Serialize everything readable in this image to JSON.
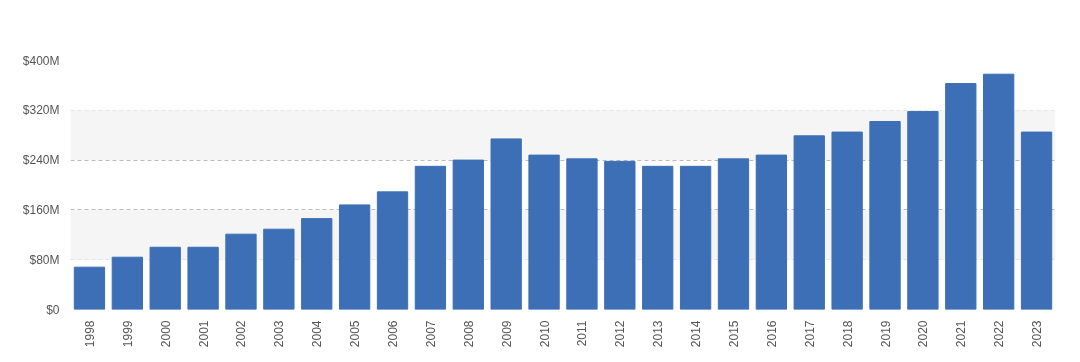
{
  "chart_data": {
    "type": "bar",
    "categories": [
      "1998",
      "1999",
      "2000",
      "2001",
      "2002",
      "2003",
      "2004",
      "2005",
      "2006",
      "2007",
      "2008",
      "2009",
      "2010",
      "2011",
      "2012",
      "2013",
      "2014",
      "2015",
      "2016",
      "2017",
      "2018",
      "2019",
      "2020",
      "2021",
      "2022",
      "2023"
    ],
    "values": [
      68,
      84,
      100,
      100,
      121,
      129,
      146,
      168,
      189,
      230,
      240,
      274,
      248,
      242,
      238,
      230,
      230,
      242,
      248,
      279,
      285,
      302,
      318,
      363,
      378,
      285
    ],
    "color": "#3d6fb6",
    "ylim": [
      0,
      400
    ],
    "yticks": [
      {
        "value": 0,
        "label": "$0"
      },
      {
        "value": 80,
        "label": "$80M"
      },
      {
        "value": 160,
        "label": "$160M"
      },
      {
        "value": 240,
        "label": "$240M"
      },
      {
        "value": 320,
        "label": "$320M"
      },
      {
        "value": 400,
        "label": "$400M"
      }
    ],
    "grid": "y",
    "bands": [
      {
        "axis": "y",
        "from": 80,
        "to": 160,
        "color": "#f5f5f5"
      },
      {
        "axis": "y",
        "from": 240,
        "to": 320,
        "color": "#f5f5f5"
      }
    ]
  }
}
